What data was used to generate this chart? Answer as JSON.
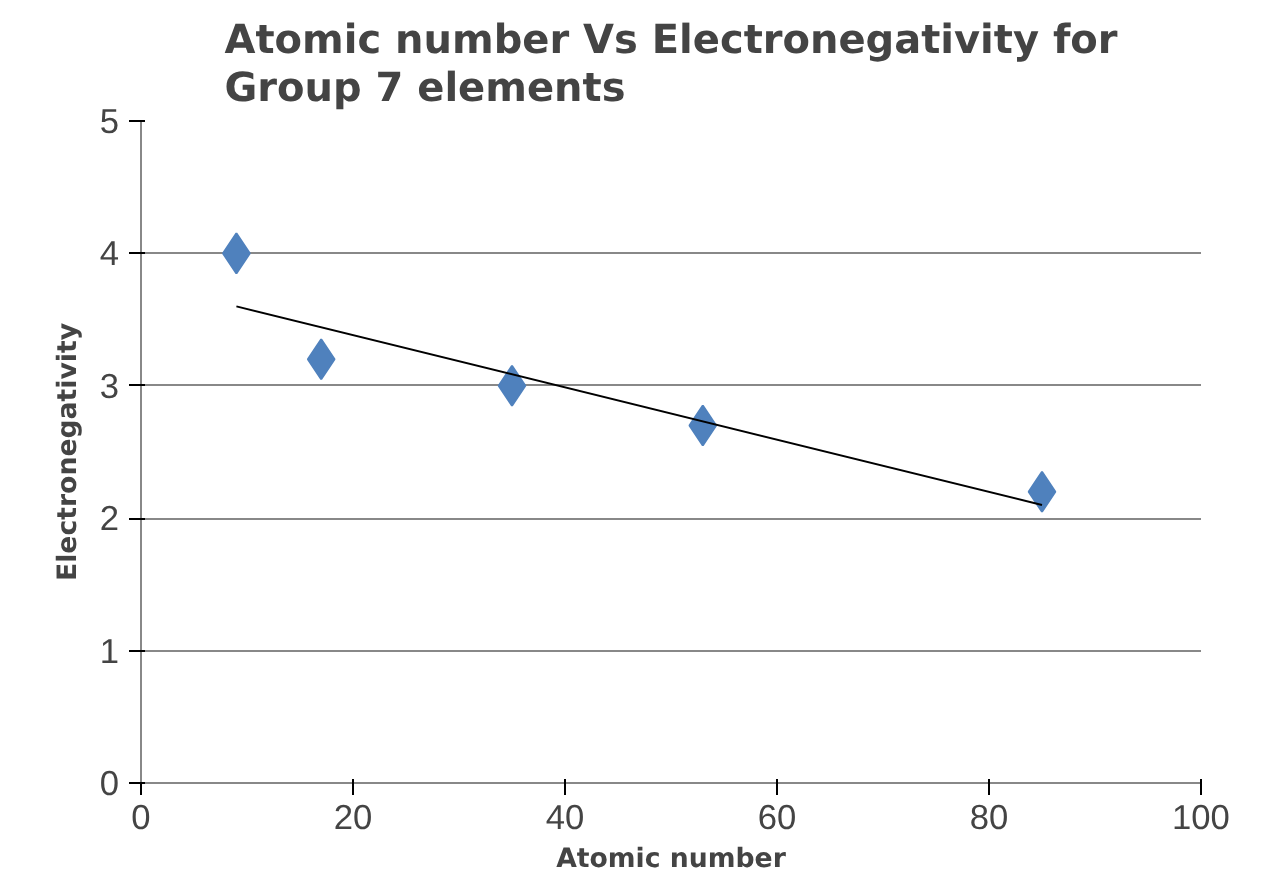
{
  "chart_data": {
    "type": "scatter",
    "title": "Atomic number Vs Electronegativity for\nGroup 7 elements",
    "xlabel": "Atomic number",
    "ylabel": "Electronegativity",
    "x": [
      9,
      17,
      35,
      53,
      85
    ],
    "series": [
      {
        "color": "#4f81bd",
        "values": [
          4.0,
          3.2,
          3.0,
          2.7,
          2.2
        ],
        "marker": "diamond"
      },
      {
        "type": "line",
        "color": "#000000",
        "x": [
          9,
          85
        ],
        "values": [
          3.6,
          2.1
        ],
        "marker": "none"
      }
    ],
    "xlim": [
      0,
      100
    ],
    "xticks": [
      0,
      20,
      40,
      60,
      80,
      100
    ],
    "ylim": [
      0,
      5
    ],
    "yticks": [
      0,
      1,
      2,
      3,
      4,
      5
    ],
    "grid": "y"
  }
}
